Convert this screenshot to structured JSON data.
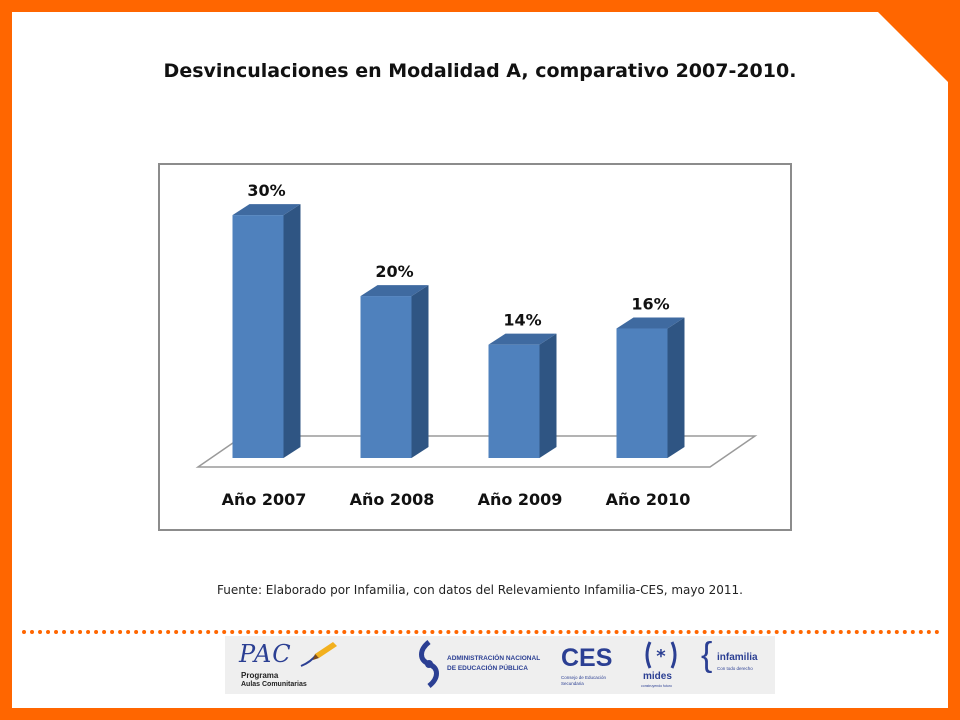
{
  "slide": {
    "title": "Desvinculaciones en Modalidad A, comparativo 2007-2010.",
    "source": "Fuente: Elaborado por Infamilia, con datos del Relevamiento Infamilia-CES, mayo 2011."
  },
  "colors": {
    "frame": "#ff6600",
    "bar_front": "#4f81bd",
    "bar_side": "#2f5583",
    "bar_top": "#3f6aa0",
    "logo_blue": "#2b3f93",
    "logo_orange": "#f07f1f"
  },
  "chart_data": {
    "type": "bar",
    "title": "Desvinculaciones en Modalidad A, comparativo 2007-2010.",
    "categories": [
      "Año 2007",
      "Año 2008",
      "Año 2009",
      "Año 2010"
    ],
    "values": [
      30,
      20,
      14,
      16
    ],
    "data_labels": [
      "30%",
      "20%",
      "14%",
      "16%"
    ],
    "ylim": [
      0,
      31
    ],
    "grid": false,
    "legend": "none",
    "style": "3d"
  },
  "logos": {
    "pac": {
      "mark": "PAC",
      "line1": "Programa",
      "line2": "Aulas Comunitarias"
    },
    "anep": {
      "line1": "ADMINISTRACIÓN NACIONAL",
      "line2": "DE EDUCACIÓN PÚBLICA"
    },
    "ces": {
      "mark": "CES",
      "line1": "Consejo de Educación",
      "line2": "Secundaria"
    },
    "mides": {
      "mark": "mides",
      "tagline": "construyendo futuro"
    },
    "infamilia": {
      "mark": "infamilia",
      "tagline": "Con todo derecho"
    }
  }
}
